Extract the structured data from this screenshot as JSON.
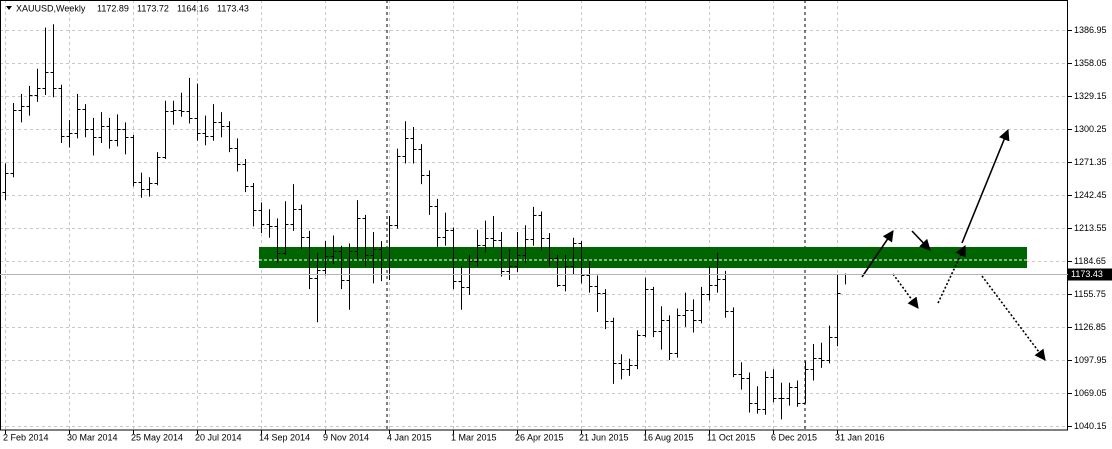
{
  "chart_data": {
    "type": "ohlc",
    "symbol": "XAUUSD,Weekly",
    "color": "#000000",
    "grid": true,
    "ylim": [
      1036.65,
      1413.2
    ],
    "yticks": [
      1040.15,
      1069.05,
      1097.95,
      1126.85,
      1155.75,
      1184.65,
      1213.55,
      1242.45,
      1271.35,
      1300.25,
      1329.15,
      1358.05,
      1386.95
    ],
    "categories": [
      "2 Feb 2014",
      null,
      null,
      null,
      null,
      null,
      null,
      null,
      "30 Mar 2014",
      null,
      null,
      null,
      null,
      null,
      null,
      null,
      "25 May 2014",
      null,
      null,
      null,
      null,
      null,
      null,
      null,
      "20 Jul 2014",
      null,
      null,
      null,
      null,
      null,
      null,
      null,
      "14 Sep 2014",
      null,
      null,
      null,
      null,
      null,
      null,
      null,
      "9 Nov 2014",
      null,
      null,
      null,
      null,
      null,
      null,
      null,
      "4 Jan 2015",
      null,
      null,
      null,
      null,
      null,
      null,
      null,
      "1 Mar 2015",
      null,
      null,
      null,
      null,
      null,
      null,
      null,
      "26 Apr 2015",
      null,
      null,
      null,
      null,
      null,
      null,
      null,
      "21 Jun 2015",
      null,
      null,
      null,
      null,
      null,
      null,
      null,
      "16 Aug 2015",
      null,
      null,
      null,
      null,
      null,
      null,
      null,
      "11 Oct 2015",
      null,
      null,
      null,
      null,
      null,
      null,
      null,
      "6 Dec 2015",
      null,
      null,
      null,
      null,
      null,
      null,
      null,
      "31 Jan 2016",
      null
    ],
    "open": [
      1245,
      1262,
      1317,
      1320,
      1330,
      1336,
      1350,
      1336,
      1294,
      1297,
      1318,
      1300,
      1293,
      1303,
      1291,
      1300,
      1293,
      1254,
      1248,
      1253,
      1276,
      1316,
      1317,
      1316,
      1310,
      1297,
      1294,
      1306,
      1303,
      1284,
      1270,
      1250,
      1229,
      1217,
      1215,
      1192,
      1217,
      1230,
      1206,
      1170,
      1177,
      1189,
      1193,
      1168,
      1193,
      1222,
      1190,
      1195,
      1173,
      1216,
      1277,
      1292,
      1283,
      1260,
      1233,
      1206,
      1212,
      1167,
      1162,
      1185,
      1199,
      1205,
      1203,
      1176,
      1180,
      1190,
      1204,
      1225,
      1205,
      1187,
      1164,
      1180,
      1200,
      1172,
      1163,
      1157,
      1132,
      1095,
      1090,
      1094,
      1120,
      1160,
      1123,
      1133,
      1104,
      1137,
      1142,
      1133,
      1156,
      1164,
      1169,
      1141,
      1086,
      1082,
      1060,
      1055,
      1083,
      1065,
      1065,
      1074,
      1060,
      1090,
      1100,
      1098,
      1118,
      1172.89
    ],
    "high": [
      1270,
      1323,
      1331,
      1338,
      1353,
      1389,
      1392,
      1339,
      1308,
      1331,
      1322,
      1310,
      1315,
      1310,
      1313,
      1306,
      1295,
      1262,
      1258,
      1280,
      1325,
      1325,
      1332,
      1345,
      1340,
      1312,
      1322,
      1315,
      1307,
      1292,
      1274,
      1253,
      1236,
      1230,
      1222,
      1237,
      1252,
      1234,
      1211,
      1192,
      1202,
      1207,
      1198,
      1200,
      1238,
      1225,
      1210,
      1202,
      1224,
      1283,
      1307,
      1302,
      1287,
      1264,
      1239,
      1227,
      1214,
      1180,
      1190,
      1212,
      1220,
      1224,
      1210,
      1195,
      1210,
      1216,
      1232,
      1228,
      1209,
      1190,
      1190,
      1205,
      1202,
      1185,
      1172,
      1160,
      1135,
      1103,
      1099,
      1124,
      1170,
      1162,
      1145,
      1137,
      1143,
      1157,
      1151,
      1162,
      1180,
      1192,
      1176,
      1144,
      1096,
      1087,
      1075,
      1088,
      1090,
      1078,
      1078,
      1080,
      1097,
      1112,
      1113,
      1128,
      1173,
      1173.72
    ],
    "low": [
      1238,
      1258,
      1306,
      1312,
      1324,
      1330,
      1328,
      1288,
      1284,
      1292,
      1293,
      1277,
      1288,
      1283,
      1285,
      1278,
      1250,
      1240,
      1241,
      1251,
      1274,
      1304,
      1311,
      1305,
      1290,
      1286,
      1290,
      1293,
      1280,
      1263,
      1245,
      1215,
      1209,
      1205,
      1183,
      1190,
      1211,
      1195,
      1160,
      1131,
      1172,
      1182,
      1160,
      1142,
      1186,
      1180,
      1165,
      1167,
      1168,
      1213,
      1270,
      1270,
      1252,
      1225,
      1197,
      1198,
      1160,
      1142,
      1155,
      1180,
      1192,
      1196,
      1171,
      1168,
      1175,
      1183,
      1198,
      1194,
      1180,
      1162,
      1158,
      1173,
      1165,
      1157,
      1140,
      1125,
      1077,
      1081,
      1084,
      1090,
      1118,
      1118,
      1107,
      1098,
      1100,
      1127,
      1122,
      1130,
      1150,
      1157,
      1135,
      1083,
      1072,
      1052,
      1051,
      1050,
      1061,
      1046,
      1058,
      1057,
      1060,
      1080,
      1091,
      1095,
      1110,
      1164.16
    ],
    "close": [
      1262,
      1317,
      1320,
      1330,
      1336,
      1350,
      1336,
      1294,
      1297,
      1318,
      1300,
      1293,
      1303,
      1291,
      1300,
      1293,
      1254,
      1248,
      1253,
      1276,
      1316,
      1317,
      1316,
      1310,
      1297,
      1294,
      1306,
      1303,
      1284,
      1270,
      1250,
      1229,
      1217,
      1215,
      1192,
      1217,
      1230,
      1206,
      1170,
      1177,
      1189,
      1193,
      1168,
      1193,
      1222,
      1190,
      1195,
      1173,
      1216,
      1277,
      1292,
      1283,
      1260,
      1233,
      1206,
      1212,
      1167,
      1162,
      1185,
      1199,
      1205,
      1203,
      1176,
      1180,
      1190,
      1204,
      1225,
      1205,
      1187,
      1164,
      1180,
      1200,
      1172,
      1163,
      1157,
      1132,
      1095,
      1090,
      1094,
      1120,
      1160,
      1123,
      1133,
      1104,
      1137,
      1142,
      1133,
      1156,
      1164,
      1169,
      1141,
      1086,
      1082,
      1060,
      1055,
      1083,
      1065,
      1065,
      1074,
      1060,
      1090,
      1100,
      1098,
      1118,
      1157,
      1173.43
    ]
  }
}
